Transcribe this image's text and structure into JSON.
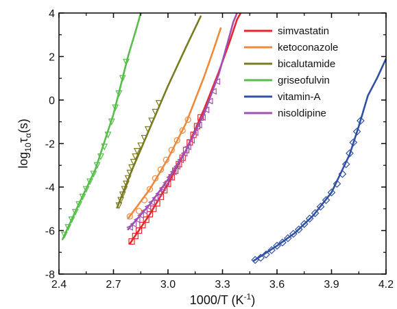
{
  "chart_data": {
    "type": "scatter",
    "xlabel": {
      "main": "1000/T (K",
      "sup": "-1",
      "end": ")"
    },
    "ylabel": {
      "main": "log",
      "sub1": "10",
      "mid": "τ",
      "sub2": "α",
      "end": "(s)"
    },
    "xlim": [
      2.4,
      4.2
    ],
    "ylim": [
      -8,
      4
    ],
    "x_ticks": [
      "2.4",
      "2.7",
      "3.0",
      "3.3",
      "3.6",
      "3.9",
      "4.2"
    ],
    "y_ticks": [
      "-8",
      "-6",
      "-4",
      "-2",
      "0",
      "2",
      "4"
    ],
    "legend_position": "top-right",
    "series": [
      {
        "name": "simvastatin",
        "color": "#e8262a",
        "marker": "square",
        "points": [
          [
            2.8,
            -6.5
          ],
          [
            2.82,
            -6.25
          ],
          [
            2.84,
            -6.0
          ],
          [
            2.86,
            -5.75
          ],
          [
            2.88,
            -5.5
          ],
          [
            2.9,
            -5.25
          ],
          [
            2.92,
            -5.0
          ],
          [
            2.94,
            -4.75
          ],
          [
            2.96,
            -4.45
          ],
          [
            2.98,
            -4.15
          ],
          [
            3.0,
            -3.85
          ],
          [
            3.02,
            -3.55
          ],
          [
            3.04,
            -3.25
          ],
          [
            3.06,
            -2.95
          ],
          [
            3.08,
            -2.65
          ],
          [
            3.1,
            -2.3
          ],
          [
            3.12,
            -1.95
          ],
          [
            3.14,
            -1.6
          ],
          [
            3.16,
            -1.2
          ],
          [
            3.18,
            -0.8
          ]
        ],
        "fit": [
          [
            2.79,
            -6.6
          ],
          [
            2.9,
            -5.25
          ],
          [
            3.0,
            -3.85
          ],
          [
            3.1,
            -2.3
          ],
          [
            3.2,
            -0.4
          ],
          [
            3.28,
            1.3
          ],
          [
            3.34,
            2.7
          ],
          [
            3.38,
            3.7
          ],
          [
            3.4,
            4.0
          ]
        ]
      },
      {
        "name": "ketoconazole",
        "color": "#f0883a",
        "marker": "circle",
        "points": [
          [
            2.79,
            -5.35
          ],
          [
            2.84,
            -5.1
          ],
          [
            2.87,
            -4.6
          ],
          [
            2.9,
            -4.1
          ],
          [
            2.93,
            -3.6
          ],
          [
            2.96,
            -3.2
          ],
          [
            2.99,
            -2.75
          ],
          [
            3.02,
            -2.3
          ],
          [
            3.05,
            -1.85
          ],
          [
            3.08,
            -1.4
          ],
          [
            3.11,
            -0.9
          ]
        ],
        "fit": [
          [
            2.78,
            -5.45
          ],
          [
            2.9,
            -4.1
          ],
          [
            3.0,
            -2.7
          ],
          [
            3.1,
            -1.05
          ],
          [
            3.2,
            1.1
          ],
          [
            3.25,
            2.3
          ],
          [
            3.29,
            3.3
          ]
        ]
      },
      {
        "name": "bicalutamide",
        "color": "#7a7a20",
        "marker": "triangle-down",
        "points": [
          [
            2.73,
            -4.85
          ],
          [
            2.74,
            -4.6
          ],
          [
            2.75,
            -4.35
          ],
          [
            2.76,
            -4.1
          ],
          [
            2.77,
            -3.85
          ],
          [
            2.78,
            -3.6
          ],
          [
            2.79,
            -3.35
          ],
          [
            2.8,
            -3.1
          ],
          [
            2.81,
            -2.85
          ],
          [
            2.82,
            -2.6
          ],
          [
            2.83,
            -2.35
          ],
          [
            2.85,
            -2.1
          ],
          [
            2.87,
            -1.75
          ],
          [
            2.89,
            -1.35
          ],
          [
            2.91,
            -0.95
          ],
          [
            2.93,
            -0.55
          ],
          [
            2.95,
            -0.15
          ]
        ],
        "fit": [
          [
            2.72,
            -4.95
          ],
          [
            2.8,
            -3.25
          ],
          [
            2.9,
            -1.3
          ],
          [
            3.0,
            0.65
          ],
          [
            3.1,
            2.45
          ],
          [
            3.18,
            3.85
          ]
        ]
      },
      {
        "name": "griseofulvin",
        "color": "#57bd4a",
        "marker": "triangle-down",
        "points": [
          [
            2.43,
            -6.2
          ],
          [
            2.45,
            -5.85
          ],
          [
            2.47,
            -5.5
          ],
          [
            2.49,
            -5.15
          ],
          [
            2.51,
            -4.8
          ],
          [
            2.53,
            -4.45
          ],
          [
            2.55,
            -4.1
          ],
          [
            2.57,
            -3.75
          ],
          [
            2.59,
            -3.4
          ],
          [
            2.61,
            -3.0
          ],
          [
            2.63,
            -2.6
          ],
          [
            2.65,
            -2.15
          ],
          [
            2.67,
            -1.6
          ],
          [
            2.69,
            -1.0
          ],
          [
            2.71,
            -0.35
          ],
          [
            2.73,
            0.3
          ],
          [
            2.75,
            1.0
          ],
          [
            2.77,
            1.75
          ]
        ],
        "fit": [
          [
            2.42,
            -6.4
          ],
          [
            2.5,
            -4.95
          ],
          [
            2.6,
            -3.2
          ],
          [
            2.7,
            -0.65
          ],
          [
            2.78,
            2.0
          ],
          [
            2.83,
            3.4
          ],
          [
            2.85,
            4.0
          ]
        ]
      },
      {
        "name": "vitamin-A",
        "color": "#2e4fa3",
        "marker": "diamond",
        "points": [
          [
            3.48,
            -7.35
          ],
          [
            3.51,
            -7.25
          ],
          [
            3.54,
            -7.1
          ],
          [
            3.57,
            -6.9
          ],
          [
            3.6,
            -6.7
          ],
          [
            3.63,
            -6.55
          ],
          [
            3.66,
            -6.35
          ],
          [
            3.69,
            -6.15
          ],
          [
            3.72,
            -5.95
          ],
          [
            3.75,
            -5.7
          ],
          [
            3.78,
            -5.45
          ],
          [
            3.81,
            -5.2
          ],
          [
            3.84,
            -4.9
          ],
          [
            3.87,
            -4.6
          ],
          [
            3.9,
            -4.25
          ],
          [
            3.93,
            -3.85
          ],
          [
            3.96,
            -3.4
          ],
          [
            3.98,
            -2.95
          ],
          [
            4.0,
            -2.45
          ],
          [
            4.02,
            -1.95
          ],
          [
            4.04,
            -1.45
          ],
          [
            4.06,
            -0.95
          ]
        ],
        "fit": [
          [
            3.47,
            -7.4
          ],
          [
            3.6,
            -6.7
          ],
          [
            3.7,
            -6.1
          ],
          [
            3.8,
            -5.3
          ],
          [
            3.9,
            -4.25
          ],
          [
            4.0,
            -2.5
          ],
          [
            4.05,
            -1.2
          ],
          [
            4.1,
            0.2
          ],
          [
            4.15,
            1.0
          ],
          [
            4.2,
            1.9
          ]
        ]
      },
      {
        "name": "nisoldipine",
        "color": "#a14fb0",
        "marker": "triangle-left",
        "points": [
          [
            2.79,
            -5.85
          ],
          [
            2.81,
            -5.7
          ],
          [
            2.83,
            -5.5
          ],
          [
            2.85,
            -5.3
          ],
          [
            2.87,
            -5.1
          ],
          [
            2.89,
            -4.9
          ],
          [
            2.91,
            -4.7
          ],
          [
            2.93,
            -4.5
          ],
          [
            2.95,
            -4.3
          ],
          [
            2.97,
            -4.05
          ],
          [
            2.99,
            -3.8
          ],
          [
            3.01,
            -3.55
          ],
          [
            3.03,
            -3.3
          ],
          [
            3.05,
            -3.05
          ],
          [
            3.07,
            -2.75
          ],
          [
            3.09,
            -2.45
          ],
          [
            3.11,
            -2.15
          ],
          [
            3.13,
            -1.85
          ],
          [
            3.15,
            -1.5
          ],
          [
            3.17,
            -1.15
          ],
          [
            3.19,
            -0.8
          ],
          [
            3.21,
            -0.45
          ],
          [
            3.23,
            -0.05
          ],
          [
            3.25,
            0.4
          ],
          [
            3.27,
            0.85
          ]
        ],
        "fit": [
          [
            2.78,
            -5.95
          ],
          [
            2.9,
            -4.8
          ],
          [
            3.0,
            -3.65
          ],
          [
            3.1,
            -2.3
          ],
          [
            3.2,
            -0.6
          ],
          [
            3.28,
            1.2
          ],
          [
            3.33,
            2.7
          ],
          [
            3.36,
            3.6
          ],
          [
            3.38,
            4.0
          ]
        ]
      }
    ]
  }
}
